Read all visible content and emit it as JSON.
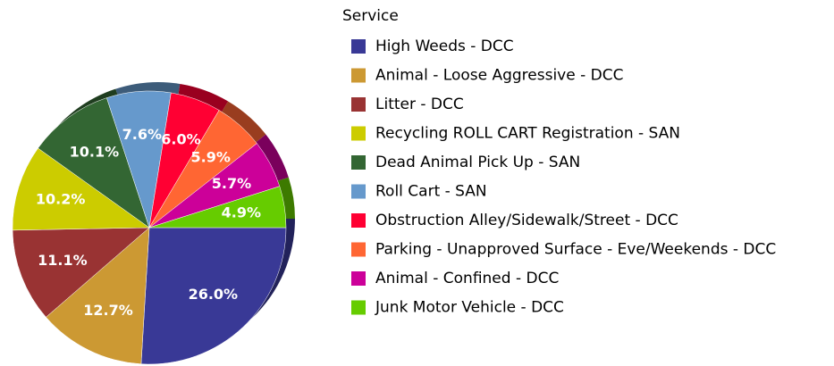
{
  "chart_data": {
    "type": "pie",
    "legend_title": "Service",
    "categories": [
      "High Weeds - DCC",
      "Animal - Loose Aggressive - DCC",
      "Litter -  DCC",
      "Recycling ROLL CART Registration - SAN",
      "Dead Animal Pick Up - SAN",
      "Roll Cart - SAN",
      "Obstruction Alley/Sidewalk/Street - DCC",
      "Parking - Unapproved Surface - Eve/Weekends - DCC",
      "Animal - Confined - DCC",
      "Junk Motor Vehicle - DCC"
    ],
    "values": [
      26.0,
      12.7,
      11.1,
      10.2,
      10.1,
      7.6,
      6.0,
      5.9,
      5.7,
      4.9
    ],
    "value_labels": [
      "26.0%",
      "12.7%",
      "11.1%",
      "10.2%",
      "10.1%",
      "7.6%",
      "6.0%",
      "5.9%",
      "5.7%",
      "4.9%"
    ],
    "colors": [
      "#393996",
      "#cc9933",
      "#993333",
      "#cccc00",
      "#336633",
      "#6699cc",
      "#ff0033",
      "#ff6633",
      "#cc0099",
      "#66cc00"
    ],
    "legend": "right"
  }
}
